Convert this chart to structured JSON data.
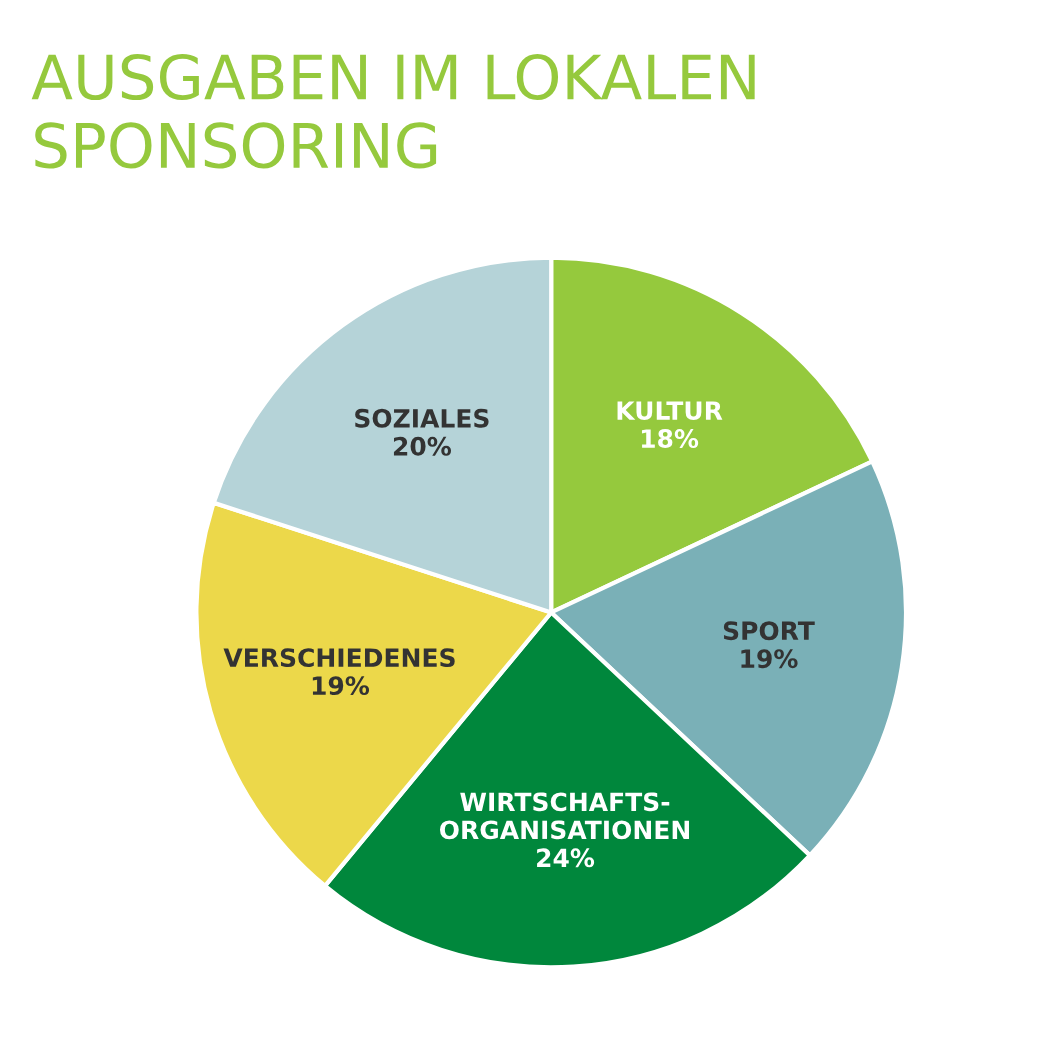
{
  "chart_data": {
    "type": "pie",
    "title": "AUSGABEN IM LOKALEN SPONSORING",
    "categories": [
      "KULTUR",
      "SPORT",
      "WIRTSCHAFTS-ORGANISATIONEN",
      "VERSCHIEDENES",
      "SOZIALES"
    ],
    "values": [
      18,
      19,
      24,
      19,
      20
    ],
    "value_labels": [
      "18%",
      "19%",
      "24%",
      "19%",
      "20%"
    ],
    "colors": [
      "#95c93d",
      "#7ab0b7",
      "#00873c",
      "#ecd84a",
      "#b5d3d8"
    ],
    "legend": false
  }
}
